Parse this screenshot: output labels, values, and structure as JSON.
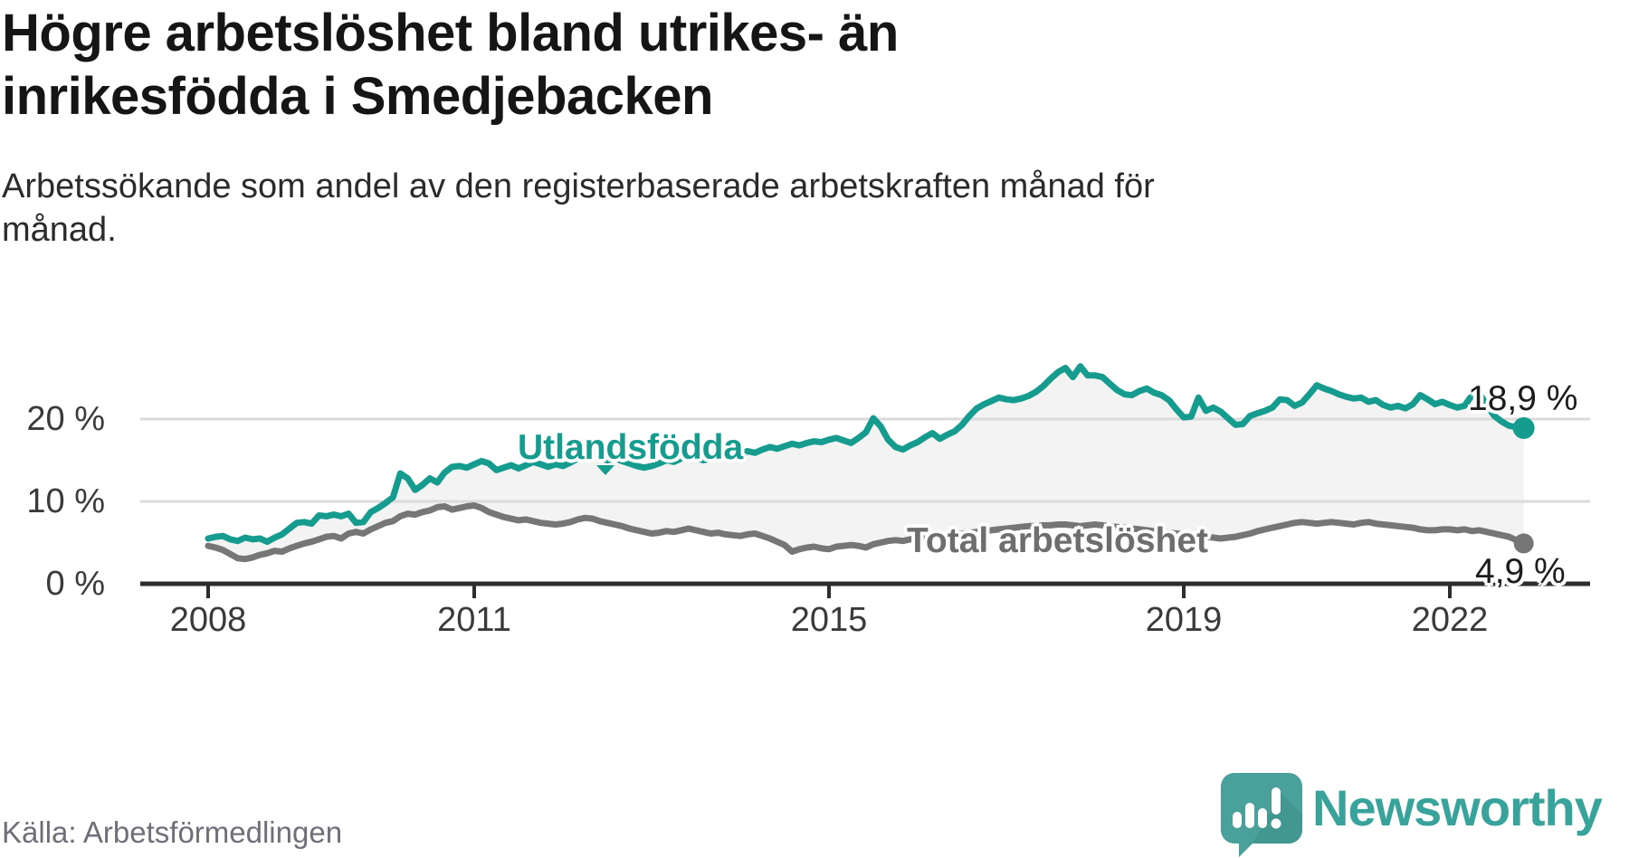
{
  "header": {
    "title_line1": "Högre arbetslöshet bland utrikes- än",
    "title_line2": "inrikesfödda i Smedjebacken",
    "subtitle_line1": "Arbetssökande som andel av den registerbaserade arbetskraften månad för",
    "subtitle_line2": "månad."
  },
  "footer": {
    "source": "Källa: Arbetsförmedlingen",
    "brand": "Newsworthy"
  },
  "colors": {
    "accent_teal": "#169c8f",
    "line_gray": "#767676",
    "fill_between": "#f3f3f3",
    "gridline": "#dbdbdb",
    "axis": "#2d2d2d",
    "logo_teal": "#4aa09a",
    "logo_teal_dark": "#3d8f89",
    "wordmark_teal": "#38a39b"
  },
  "chart_data": {
    "type": "line",
    "title": "Högre arbetslöshet bland utrikes- än inrikesfödda i Smedjebacken",
    "subtitle": "Arbetssökande som andel av den registerbaserade arbetskraften månad för månad.",
    "unit": "%",
    "start_year": 2008,
    "points_per_month": 1,
    "x_range_years": [
      2008,
      2022.92
    ],
    "ylim": [
      0,
      27
    ],
    "grid": "horizontal",
    "legend_position": "inline-labels",
    "xticks": [
      2008,
      2011,
      2015,
      2019,
      2022
    ],
    "yticks": [
      {
        "value": 0,
        "label": "0 %"
      },
      {
        "value": 10,
        "label": "10 %"
      },
      {
        "value": 20,
        "label": "20 %"
      }
    ],
    "series": [
      {
        "name": "Utlandsfödda",
        "color": "#169c8f",
        "end_label": "18,9 %",
        "end_value": 18.9,
        "values": [
          5.5,
          5.7,
          5.8,
          5.4,
          5.2,
          5.6,
          5.4,
          5.5,
          5.1,
          5.6,
          6.0,
          6.7,
          7.4,
          7.5,
          7.3,
          8.3,
          8.2,
          8.4,
          8.2,
          8.5,
          7.4,
          7.5,
          8.7,
          9.2,
          9.8,
          10.5,
          13.4,
          12.8,
          11.4,
          12.0,
          12.8,
          12.3,
          13.5,
          14.2,
          14.3,
          14.1,
          14.5,
          14.9,
          14.6,
          13.8,
          14.1,
          14.4,
          14.0,
          14.4,
          14.8,
          14.5,
          14.2,
          14.5,
          14.3,
          14.7,
          15.2,
          15.8,
          16.1,
          15.5,
          15.0,
          15.3,
          14.9,
          14.6,
          14.3,
          14.1,
          14.3,
          14.6,
          15.0,
          14.8,
          15.2,
          15.5,
          15.3,
          15.0,
          15.2,
          15.5,
          15.3,
          15.6,
          15.8,
          16.1,
          15.9,
          16.3,
          16.6,
          16.4,
          16.7,
          17.0,
          16.8,
          17.1,
          17.3,
          17.2,
          17.5,
          17.7,
          17.4,
          17.1,
          17.7,
          18.4,
          20.1,
          19.1,
          17.5,
          16.6,
          16.3,
          16.8,
          17.2,
          17.8,
          18.3,
          17.6,
          18.1,
          18.5,
          19.3,
          20.4,
          21.3,
          21.8,
          22.2,
          22.6,
          22.4,
          22.3,
          22.5,
          22.8,
          23.3,
          24.0,
          24.9,
          25.7,
          26.2,
          25.1,
          26.4,
          25.3,
          25.3,
          25.1,
          24.3,
          23.5,
          23.0,
          22.9,
          23.4,
          23.7,
          23.2,
          22.9,
          22.3,
          21.2,
          20.2,
          20.3,
          22.6,
          21.0,
          21.4,
          20.9,
          20.1,
          19.3,
          19.4,
          20.4,
          20.7,
          21.0,
          21.4,
          22.4,
          22.3,
          21.6,
          22.0,
          23.0,
          24.1,
          23.7,
          23.4,
          23.0,
          22.7,
          22.5,
          22.6,
          22.1,
          22.3,
          21.7,
          21.4,
          21.6,
          21.3,
          21.8,
          22.9,
          22.4,
          21.8,
          22.1,
          21.7,
          21.4,
          21.6,
          22.9,
          23.1,
          21.7,
          20.4,
          19.7,
          19.2,
          19.0,
          18.9
        ]
      },
      {
        "name": "Total arbetslöshet",
        "color": "#767676",
        "end_label": "4,9 %",
        "end_value": 4.9,
        "values": [
          4.6,
          4.4,
          4.1,
          3.6,
          3.1,
          3.0,
          3.2,
          3.5,
          3.7,
          4.0,
          3.9,
          4.3,
          4.6,
          4.9,
          5.1,
          5.4,
          5.7,
          5.8,
          5.5,
          6.1,
          6.3,
          6.1,
          6.6,
          7.0,
          7.4,
          7.6,
          8.2,
          8.5,
          8.4,
          8.7,
          8.9,
          9.3,
          9.4,
          9.0,
          9.2,
          9.4,
          9.5,
          9.2,
          8.7,
          8.4,
          8.1,
          7.9,
          7.7,
          7.8,
          7.6,
          7.4,
          7.3,
          7.2,
          7.3,
          7.5,
          7.8,
          8.0,
          7.9,
          7.6,
          7.4,
          7.2,
          7.0,
          6.7,
          6.5,
          6.3,
          6.1,
          6.2,
          6.4,
          6.3,
          6.5,
          6.7,
          6.5,
          6.3,
          6.1,
          6.2,
          6.0,
          5.9,
          5.8,
          6.0,
          6.1,
          5.8,
          5.5,
          5.1,
          4.7,
          3.9,
          4.2,
          4.4,
          4.5,
          4.3,
          4.2,
          4.5,
          4.6,
          4.7,
          4.6,
          4.4,
          4.8,
          5.0,
          5.2,
          5.3,
          5.2,
          5.4,
          5.5,
          5.6,
          5.7,
          5.8,
          5.9,
          6.0,
          6.1,
          6.2,
          6.3,
          6.4,
          6.5,
          6.6,
          6.7,
          6.8,
          6.9,
          7.0,
          7.0,
          7.1,
          7.1,
          7.2,
          7.2,
          7.1,
          7.0,
          7.1,
          7.2,
          7.1,
          7.0,
          6.9,
          6.8,
          6.7,
          6.6,
          6.5,
          6.4,
          6.3,
          6.2,
          6.1,
          6.0,
          5.9,
          5.8,
          5.7,
          5.6,
          5.5,
          5.6,
          5.7,
          5.9,
          6.1,
          6.4,
          6.6,
          6.8,
          7.0,
          7.2,
          7.4,
          7.5,
          7.4,
          7.3,
          7.4,
          7.5,
          7.4,
          7.3,
          7.2,
          7.4,
          7.5,
          7.3,
          7.2,
          7.1,
          7.0,
          6.9,
          6.8,
          6.6,
          6.5,
          6.5,
          6.6,
          6.6,
          6.5,
          6.6,
          6.4,
          6.5,
          6.3,
          6.1,
          5.9,
          5.7,
          5.3,
          4.9
        ]
      }
    ]
  }
}
